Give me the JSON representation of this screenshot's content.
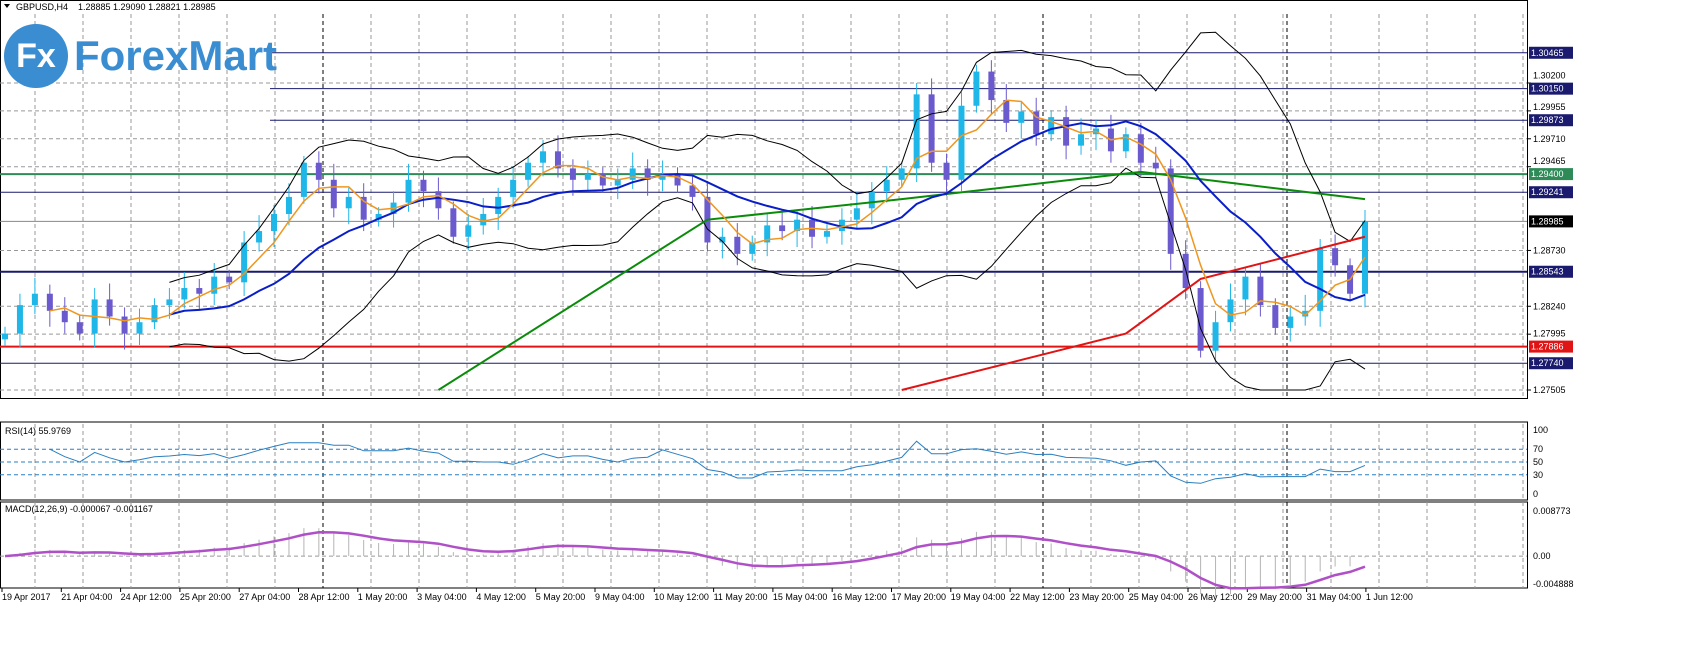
{
  "header": {
    "symbol": "GBPUSD,H4",
    "ohlc": "1.28885 1.29090 1.28821 1.28985"
  },
  "logo": {
    "mark": "Fx",
    "text": "ForexMart"
  },
  "colors": {
    "bull": "#1fb6e8",
    "bear": "#6a5acd",
    "ma_fast": "#f0961e",
    "ma_mid": "#0a1ec8",
    "ma_slow": "#0a8c0a",
    "ma_long": "#e01414",
    "bands": "#000000",
    "rsi": "#2a7fc0",
    "macd_signal": "#b050c8",
    "macd_hist": "#b4b4b4"
  },
  "chart_data": [
    {
      "type": "candlestick",
      "title": "GBPUSD,H4",
      "ylim": [
        1.27505,
        1.307
      ],
      "yticks": [
        "1.30200",
        "1.29955",
        "1.29710",
        "1.29465",
        "1.28730",
        "1.28240",
        "1.27995",
        "1.27505"
      ],
      "close": [
        1.28,
        1.2825,
        1.2835,
        1.282,
        1.281,
        1.28,
        1.283,
        1.2815,
        1.28,
        1.281,
        1.2825,
        1.283,
        1.284,
        1.2835,
        1.285,
        1.2845,
        1.288,
        1.289,
        1.2905,
        1.292,
        1.295,
        1.2935,
        1.291,
        1.292,
        1.29,
        1.2905,
        1.2915,
        1.2935,
        1.2925,
        1.291,
        1.2885,
        1.2895,
        1.2905,
        1.292,
        1.2935,
        1.295,
        1.296,
        1.2945,
        1.2935,
        1.294,
        1.293,
        1.2935,
        1.2945,
        1.2935,
        1.294,
        1.293,
        1.292,
        1.288,
        1.2885,
        1.287,
        1.288,
        1.2895,
        1.289,
        1.29,
        1.2885,
        1.289,
        1.29,
        1.291,
        1.2925,
        1.2935,
        1.2945,
        1.301,
        1.295,
        1.2935,
        1.3,
        1.303,
        1.3005,
        1.2985,
        1.2995,
        1.2975,
        1.299,
        1.2965,
        1.2975,
        1.298,
        1.296,
        1.2975,
        1.295,
        1.2945,
        1.287,
        1.284,
        1.2785,
        1.281,
        1.283,
        1.285,
        1.2825,
        1.2805,
        1.2815,
        1.282,
        1.2875,
        1.286,
        1.2835,
        1.28985
      ],
      "ma_fast_period": 4,
      "ma_mid_period": 12,
      "bands_period": 12,
      "ma_slow_points": [
        [
          29,
          1.27505
        ],
        [
          47,
          1.29
        ],
        [
          60,
          1.2918
        ],
        [
          76,
          1.2942
        ],
        [
          91,
          1.2918
        ]
      ],
      "ma_long_points": [
        [
          60,
          1.27505
        ],
        [
          75,
          1.28
        ],
        [
          80,
          1.2848
        ],
        [
          91,
          1.2885
        ]
      ],
      "hlines": [
        {
          "price": 1.30465,
          "label": "1.30465",
          "color": "#1a1a6e"
        },
        {
          "price": 1.3015,
          "label": "1.30150",
          "color": "#1a1a6e"
        },
        {
          "price": 1.29873,
          "label": "1.29873",
          "color": "#1a1a6e"
        },
        {
          "price": 1.294,
          "label": "1.29400",
          "color": "#2e8b57"
        },
        {
          "price": 1.29241,
          "label": "1.29241",
          "color": "#1a1a6e"
        },
        {
          "price": 1.28985,
          "label": "1.28985",
          "color": "#000000"
        },
        {
          "price": 1.28543,
          "label": "1.28543",
          "color": "#1a1a6e"
        },
        {
          "price": 1.27886,
          "label": "1.27886",
          "color": "#e01414"
        },
        {
          "price": 1.2774,
          "label": "1.27740",
          "color": "#1a1a6e"
        }
      ],
      "xticks": [
        "19 Apr 2017",
        "21 Apr 04:00",
        "24 Apr 12:00",
        "25 Apr 20:00",
        "27 Apr 04:00",
        "28 Apr 12:00",
        "1 May 20:00",
        "3 May 04:00",
        "4 May 12:00",
        "5 May 20:00",
        "9 May 04:00",
        "10 May 12:00",
        "11 May 20:00",
        "15 May 04:00",
        "16 May 12:00",
        "17 May 20:00",
        "19 May 04:00",
        "22 May 12:00",
        "23 May 20:00",
        "25 May 04:00",
        "26 May 12:00",
        "29 May 20:00",
        "31 May 04:00",
        "1 Jun 12:00"
      ]
    },
    {
      "type": "line",
      "title": "RSI(14) 55.9769",
      "ylim": [
        0,
        100
      ],
      "yticks": [
        "100",
        "70",
        "50",
        "30",
        "0"
      ],
      "levels": [
        70,
        50,
        30
      ],
      "period": 14
    },
    {
      "type": "line",
      "title": "MACD(12,26,9) -0.000067 -0.001167",
      "ylim": [
        -0.004888,
        0.008773
      ],
      "yticks": [
        "0.008773",
        "0.00",
        "-0.004888"
      ],
      "fast": 12,
      "slow": 26,
      "signal": 9
    }
  ]
}
